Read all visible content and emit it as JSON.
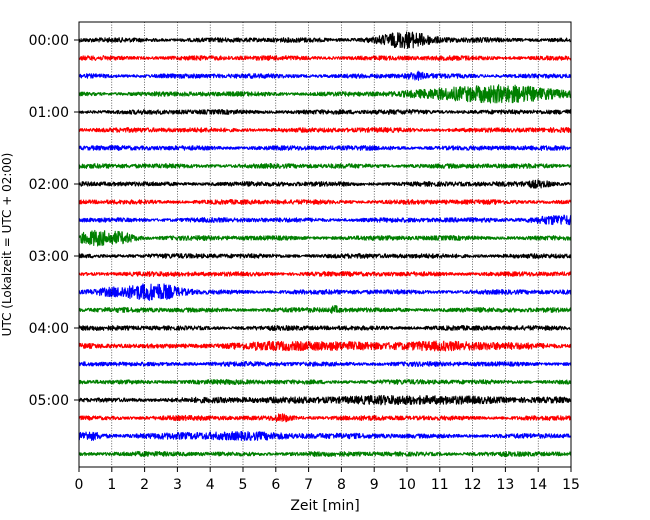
{
  "chart_data": {
    "type": "line",
    "title": "",
    "xlabel": "Zeit  [min]",
    "ylabel": "UTC (Lokalzeit = UTC + 02:00)",
    "xlim": [
      0,
      15
    ],
    "x_ticks": [
      "0",
      "1",
      "2",
      "3",
      "4",
      "5",
      "6",
      "7",
      "8",
      "9",
      "10",
      "11",
      "12",
      "13",
      "14",
      "15"
    ],
    "y_ticks": [
      "00:00",
      "01:00",
      "02:00",
      "03:00",
      "04:00",
      "05:00"
    ],
    "grid": "vertical dotted at each minute",
    "trace_interval_min": 15,
    "colors": [
      "#000000",
      "#ff0000",
      "#0000ff",
      "#008000"
    ],
    "series": [
      {
        "start": "00:00",
        "color": "#000000",
        "events": [
          [
            10.1,
            2.2,
            0.5
          ],
          [
            9.7,
            1.3,
            0.6
          ]
        ]
      },
      {
        "start": "00:15",
        "color": "#ff0000",
        "events": []
      },
      {
        "start": "00:30",
        "color": "#0000ff",
        "events": [
          [
            10.3,
            1.3,
            0.2
          ]
        ]
      },
      {
        "start": "00:45",
        "color": "#008000",
        "events": [
          [
            13.0,
            3.2,
            1.2
          ],
          [
            11.5,
            1.3,
            1.0
          ]
        ]
      },
      {
        "start": "01:00",
        "color": "#000000",
        "events": []
      },
      {
        "start": "01:15",
        "color": "#ff0000",
        "events": []
      },
      {
        "start": "01:30",
        "color": "#0000ff",
        "events": []
      },
      {
        "start": "01:45",
        "color": "#008000",
        "events": []
      },
      {
        "start": "02:00",
        "color": "#000000",
        "events": [
          [
            14.0,
            1.3,
            0.3
          ]
        ]
      },
      {
        "start": "02:15",
        "color": "#ff0000",
        "events": []
      },
      {
        "start": "02:30",
        "color": "#0000ff",
        "events": [
          [
            14.6,
            1.6,
            0.6
          ]
        ]
      },
      {
        "start": "02:45",
        "color": "#008000",
        "events": [
          [
            0.5,
            3.0,
            0.35
          ],
          [
            1.3,
            2.2,
            0.3
          ]
        ]
      },
      {
        "start": "03:00",
        "color": "#000000",
        "events": []
      },
      {
        "start": "03:15",
        "color": "#ff0000",
        "events": []
      },
      {
        "start": "03:30",
        "color": "#0000ff",
        "events": [
          [
            2.4,
            3.2,
            0.5
          ],
          [
            1.2,
            1.6,
            0.6
          ]
        ]
      },
      {
        "start": "03:45",
        "color": "#008000",
        "events": [
          [
            7.8,
            1.3,
            0.1
          ]
        ]
      },
      {
        "start": "04:00",
        "color": "#000000",
        "events": []
      },
      {
        "start": "04:15",
        "color": "#ff0000",
        "events": [
          [
            11.0,
            1.3,
            2.0
          ],
          [
            6.5,
            1.2,
            1.5
          ]
        ]
      },
      {
        "start": "04:30",
        "color": "#0000ff",
        "events": []
      },
      {
        "start": "04:45",
        "color": "#008000",
        "events": []
      },
      {
        "start": "05:00",
        "color": "#000000",
        "events": [
          [
            10.0,
            1.2,
            3.0
          ]
        ]
      },
      {
        "start": "05:15",
        "color": "#ff0000",
        "events": [
          [
            6.2,
            1.3,
            0.2
          ]
        ]
      },
      {
        "start": "05:30",
        "color": "#0000ff",
        "events": [
          [
            0.3,
            1.5,
            0.3
          ],
          [
            5.0,
            1.2,
            1.5
          ]
        ]
      },
      {
        "start": "05:45",
        "color": "#008000",
        "events": []
      }
    ]
  }
}
